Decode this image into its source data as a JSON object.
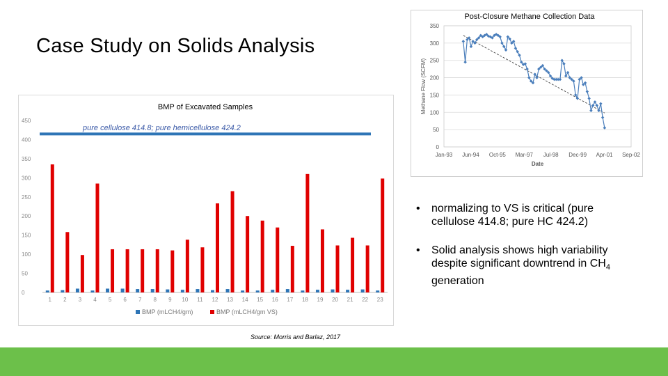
{
  "slide": {
    "title": "Case Study on Solids Analysis",
    "source": "Source: Morris and Barlaz, 2017",
    "bullets": [
      {
        "text": "normalizing to VS is critical (pure cellulose 414.8; pure HC 424.2)"
      },
      {
        "text_before": "Solid analysis shows high variability despite significant downtrend in CH",
        "subscript": "4",
        "text_after": " generation"
      }
    ],
    "colors": {
      "footer": "#6cc04a",
      "bmp_gm": "#2e75b6",
      "bmp_vs": "#e00000",
      "reference_line": "#2e75b6",
      "methane_series": "#4a7ebb"
    }
  },
  "chart_data": [
    {
      "type": "bar",
      "title": "BMP of Excavated Samples",
      "annotation": "pure cellulose 414.8; pure hemicellulose 424.2",
      "categories": [
        "1",
        "2",
        "3",
        "4",
        "5",
        "6",
        "7",
        "8",
        "9",
        "10",
        "11",
        "12",
        "13",
        "14",
        "15",
        "16",
        "17",
        "18",
        "19",
        "20",
        "21",
        "22",
        "23"
      ],
      "series": [
        {
          "name": "BMP (mLCH4/gm)",
          "values": [
            5,
            6,
            10,
            5,
            10,
            10,
            9,
            9,
            8,
            7,
            9,
            6,
            9,
            5,
            5,
            7,
            9,
            5,
            7,
            8,
            7,
            8,
            5
          ]
        },
        {
          "name": "BMP (mLCH4/gm VS)",
          "values": [
            335,
            158,
            98,
            285,
            113,
            113,
            113,
            113,
            110,
            138,
            118,
            233,
            265,
            200,
            188,
            170,
            122,
            310,
            165,
            123,
            143,
            123,
            298
          ]
        }
      ],
      "reference_line": 414.8,
      "ylim": [
        0,
        450
      ],
      "yticks": [
        0,
        50,
        100,
        150,
        200,
        250,
        300,
        350,
        400,
        450
      ],
      "legend": "bottom",
      "grid": false
    },
    {
      "type": "line",
      "title": "Post-Closure Methane Collection Data",
      "xlabel": "Date",
      "ylabel": "Methane Flow (SCFM)",
      "xticks": [
        "Jan-93",
        "Jun-94",
        "Oct-95",
        "Mar-97",
        "Jul-98",
        "Dec-99",
        "Apr-01",
        "Sep-02"
      ],
      "yticks": [
        0,
        50,
        100,
        150,
        200,
        250,
        300,
        350
      ],
      "ylim": [
        0,
        350
      ],
      "xlim": [
        1993.0,
        2002.67
      ],
      "grid": true,
      "trendline": {
        "x": [
          1994.0,
          2001.3
        ],
        "y": [
          322,
          98
        ]
      },
      "x": [
        1994.0,
        1994.1,
        1994.2,
        1994.3,
        1994.4,
        1994.5,
        1994.6,
        1994.7,
        1994.8,
        1994.9,
        1995.0,
        1995.1,
        1995.2,
        1995.3,
        1995.4,
        1995.5,
        1995.6,
        1995.7,
        1995.8,
        1995.9,
        1996.0,
        1996.1,
        1996.2,
        1996.3,
        1996.4,
        1996.5,
        1996.6,
        1996.7,
        1996.8,
        1996.9,
        1997.0,
        1997.1,
        1997.2,
        1997.3,
        1997.4,
        1997.5,
        1997.6,
        1997.7,
        1997.8,
        1997.9,
        1998.0,
        1998.1,
        1998.2,
        1998.3,
        1998.4,
        1998.5,
        1998.6,
        1998.7,
        1998.8,
        1998.9,
        1999.0,
        1999.1,
        1999.2,
        1999.3,
        1999.4,
        1999.5,
        1999.6,
        1999.7,
        1999.8,
        1999.9,
        2000.0,
        2000.1,
        2000.2,
        2000.3,
        2000.4,
        2000.5,
        2000.6,
        2000.7,
        2000.8,
        2000.9,
        2001.0,
        2001.1,
        2001.2,
        2001.3
      ],
      "y": [
        305,
        245,
        310,
        315,
        290,
        305,
        300,
        310,
        315,
        322,
        318,
        322,
        325,
        320,
        318,
        315,
        322,
        325,
        322,
        318,
        300,
        290,
        280,
        318,
        312,
        300,
        305,
        285,
        275,
        265,
        245,
        238,
        240,
        225,
        200,
        190,
        185,
        210,
        200,
        225,
        230,
        235,
        225,
        220,
        215,
        205,
        198,
        195,
        195,
        195,
        195,
        250,
        240,
        205,
        215,
        200,
        195,
        190,
        150,
        140,
        195,
        200,
        180,
        185,
        160,
        140,
        105,
        120,
        130,
        120,
        105,
        125,
        85,
        55
      ]
    }
  ]
}
